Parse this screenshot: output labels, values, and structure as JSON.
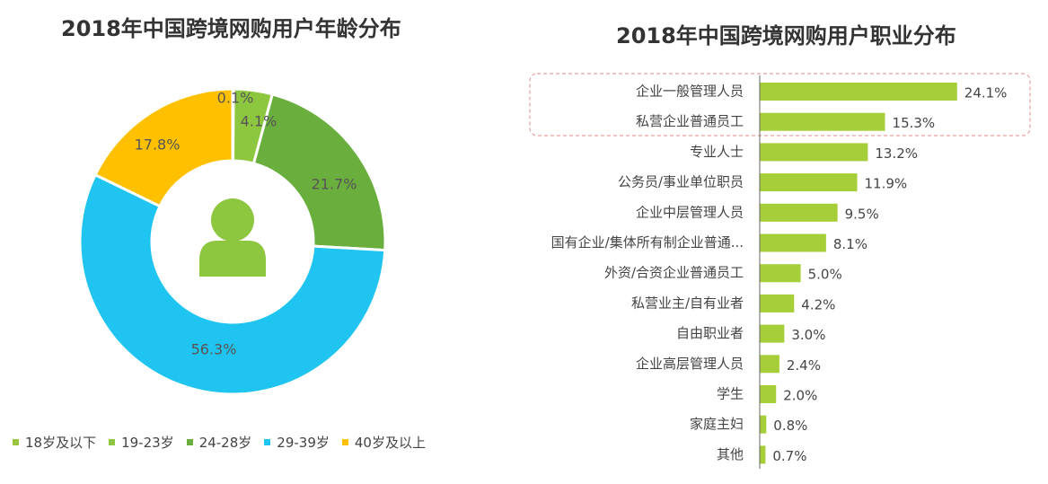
{
  "charts": {
    "left_title": "2018年中国跨境网购用户年龄分布",
    "right_title": "2018年中国跨境网购用户职业分布"
  },
  "chart_data": [
    {
      "type": "pie",
      "title": "2018年中国跨境网购用户年龄分布",
      "categories": [
        "18岁及以下",
        "19-23岁",
        "24-28岁",
        "29-39岁",
        "40岁及以上"
      ],
      "values": [
        0.1,
        4.1,
        21.7,
        56.3,
        17.8
      ],
      "labels": [
        "0.1%",
        "4.1%",
        "21.7%",
        "56.3%",
        "17.8%"
      ],
      "colors": [
        "#9BC53D",
        "#8DC63F",
        "#6AAF3D",
        "#20C4F0",
        "#FFC000"
      ],
      "donut": true,
      "center_icon": "user-icon",
      "legend": "bottom"
    },
    {
      "type": "bar",
      "orientation": "horizontal",
      "title": "2018年中国跨境网购用户职业分布",
      "categories": [
        "企业一般管理人员",
        "私营企业普通员工",
        "专业人士",
        "公务员/事业单位职员",
        "企业中层管理人员",
        "国有企业/集体所有制企业普通...",
        "外资/合资企业普通员工",
        "私营业主/自有业者",
        "自由职业者",
        "企业高层管理人员",
        "学生",
        "家庭主妇",
        "其他"
      ],
      "values": [
        24.1,
        15.3,
        13.2,
        11.9,
        9.5,
        8.1,
        5.0,
        4.2,
        3.0,
        2.4,
        2.0,
        0.8,
        0.7
      ],
      "labels": [
        "24.1%",
        "15.3%",
        "13.2%",
        "11.9%",
        "9.5%",
        "8.1%",
        "5.0%",
        "4.2%",
        "3.0%",
        "2.4%",
        "2.0%",
        "0.8%",
        "0.7%"
      ],
      "color": "#A6CE39",
      "highlight_categories": [
        "企业一般管理人员",
        "私营企业普通员工"
      ],
      "highlight_color": "#E8A0A0",
      "xlim": [
        0,
        25
      ]
    }
  ]
}
